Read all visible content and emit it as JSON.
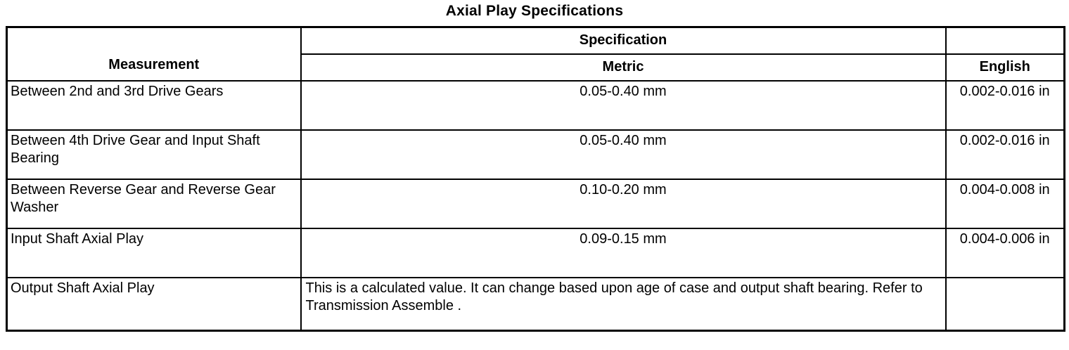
{
  "title": "Axial Play Specifications",
  "table": {
    "headers": {
      "measurement": "Measurement",
      "specification": "Specification",
      "metric": "Metric",
      "english": "English"
    },
    "rows": [
      {
        "measurement": "Between 2nd and 3rd Drive Gears",
        "metric": "0.05-0.40 mm",
        "english": "0.002-0.016 in"
      },
      {
        "measurement": "Between 4th Drive Gear and Input Shaft Bearing",
        "metric": "0.05-0.40 mm",
        "english": "0.002-0.016 in"
      },
      {
        "measurement": "Between Reverse Gear and Reverse Gear Washer",
        "metric": "0.10-0.20 mm",
        "english": "0.004-0.008 in"
      },
      {
        "measurement": "Input Shaft Axial Play",
        "metric": "0.09-0.15 mm",
        "english": "0.004-0.006 in"
      },
      {
        "measurement": "Output Shaft Axial Play",
        "metric": "This is a calculated value. It can change based upon age of case and output shaft bearing. Refer to Transmission Assemble .",
        "english": ""
      }
    ]
  }
}
